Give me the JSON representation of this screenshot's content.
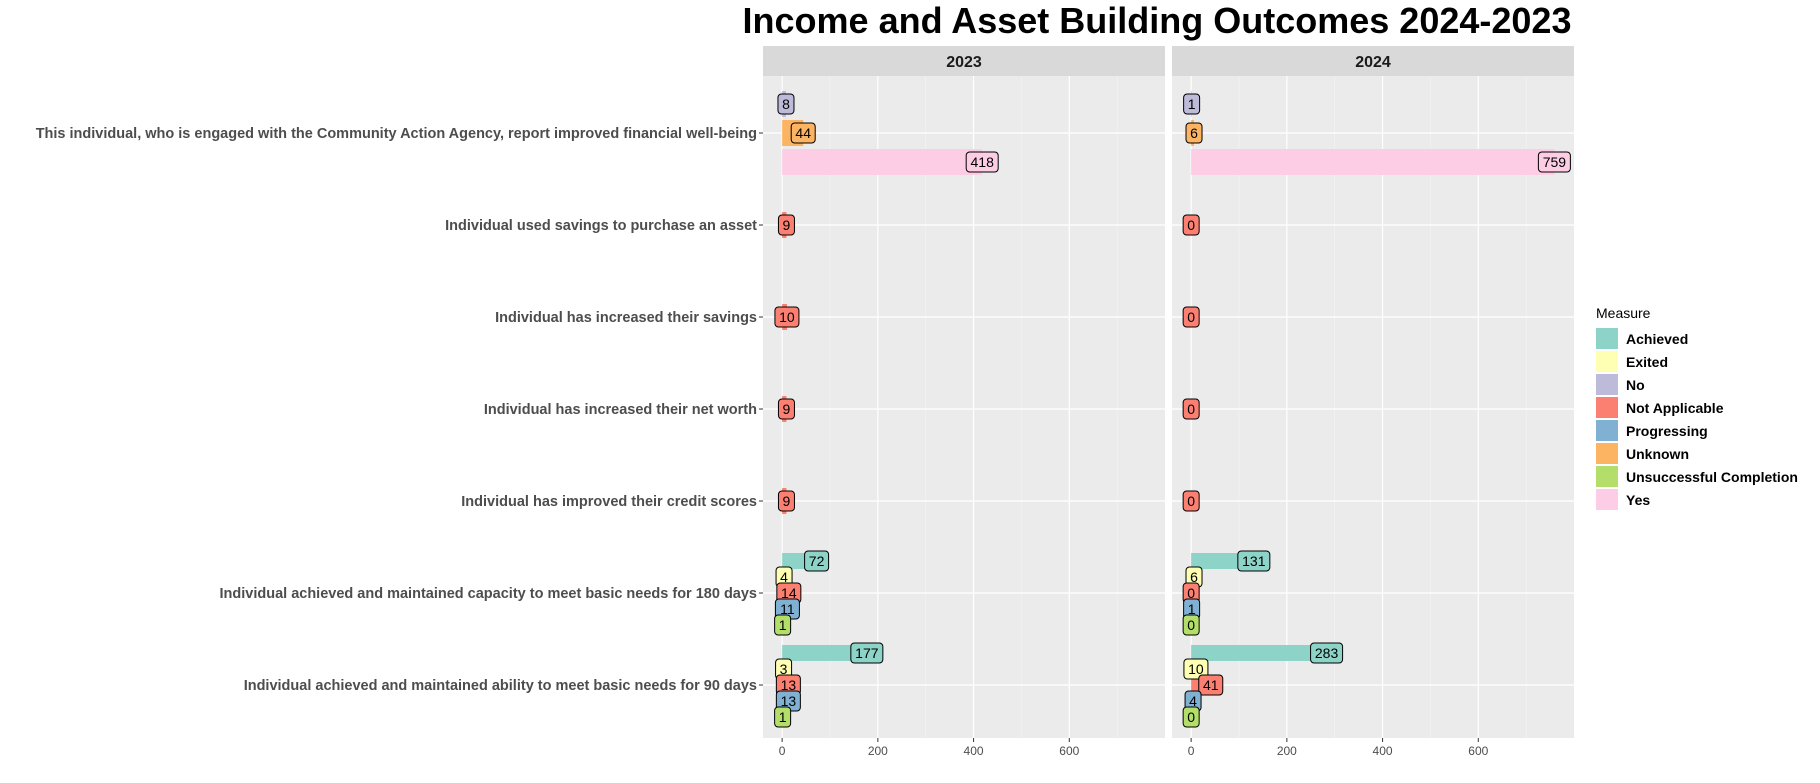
{
  "chart_data": {
    "type": "bar",
    "orientation": "horizontal",
    "title": "Income and Asset Building Outcomes 2024-2023",
    "xlabel": "",
    "ylabel": "",
    "xlim": [
      -40,
      800
    ],
    "x_ticks": [
      0,
      200,
      400,
      600
    ],
    "x_tick_labels": [
      "0",
      "200",
      "400",
      "600"
    ],
    "grid": true,
    "legend_title": "Measure",
    "legend_position": "right",
    "categories": [
      "This individual, who is engaged with the Community Action Agency, report improved financial well-being",
      "Individual used savings to purchase an asset",
      "Individual has increased their savings",
      "Individual has increased their net worth",
      "Individual has improved their credit scores",
      "Individual achieved and maintained capacity to meet basic needs for 180 days",
      "Individual achieved and maintained ability to meet basic needs for 90 days"
    ],
    "measures": [
      {
        "name": "Achieved",
        "color": "#8DD3C7"
      },
      {
        "name": "Exited",
        "color": "#FFFFB3"
      },
      {
        "name": "No",
        "color": "#BEBADA"
      },
      {
        "name": "Not Applicable",
        "color": "#FB8072"
      },
      {
        "name": "Progressing",
        "color": "#80B1D3"
      },
      {
        "name": "Unknown",
        "color": "#FDB462"
      },
      {
        "name": "Unsuccessful Completion",
        "color": "#B3DE69"
      },
      {
        "name": "Yes",
        "color": "#FCCDE5"
      }
    ],
    "panels": [
      {
        "label": "2023",
        "groups": [
          {
            "measures": [
              "No",
              "Unknown",
              "Yes"
            ],
            "values": [
              8,
              44,
              418
            ]
          },
          {
            "measures": [
              "Not Applicable"
            ],
            "values": [
              9
            ]
          },
          {
            "measures": [
              "Not Applicable"
            ],
            "values": [
              10
            ]
          },
          {
            "measures": [
              "Not Applicable"
            ],
            "values": [
              9
            ]
          },
          {
            "measures": [
              "Not Applicable"
            ],
            "values": [
              9
            ]
          },
          {
            "measures": [
              "Achieved",
              "Exited",
              "Not Applicable",
              "Progressing",
              "Unsuccessful Completion"
            ],
            "values": [
              72,
              4,
              14,
              11,
              1
            ]
          },
          {
            "measures": [
              "Achieved",
              "Exited",
              "Not Applicable",
              "Progressing",
              "Unsuccessful Completion"
            ],
            "values": [
              177,
              3,
              13,
              13,
              1
            ]
          }
        ]
      },
      {
        "label": "2024",
        "groups": [
          {
            "measures": [
              "No",
              "Unknown",
              "Yes"
            ],
            "values": [
              1,
              6,
              759
            ]
          },
          {
            "measures": [
              "Not Applicable"
            ],
            "values": [
              0
            ]
          },
          {
            "measures": [
              "Not Applicable"
            ],
            "values": [
              0
            ]
          },
          {
            "measures": [
              "Not Applicable"
            ],
            "values": [
              0
            ]
          },
          {
            "measures": [
              "Not Applicable"
            ],
            "values": [
              0
            ]
          },
          {
            "measures": [
              "Achieved",
              "Exited",
              "Not Applicable",
              "Progressing",
              "Unsuccessful Completion"
            ],
            "values": [
              131,
              6,
              0,
              1,
              0
            ]
          },
          {
            "measures": [
              "Achieved",
              "Exited",
              "Not Applicable",
              "Progressing",
              "Unsuccessful Completion"
            ],
            "values": [
              283,
              10,
              41,
              4,
              0
            ]
          }
        ]
      }
    ]
  }
}
